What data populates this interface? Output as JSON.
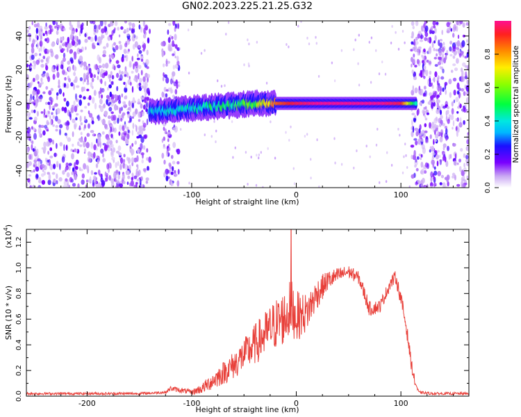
{
  "title": "GN02.2023.225.21.25.G32",
  "chart_data": [
    {
      "type": "heatmap",
      "title": "GN02.2023.225.21.25.G32",
      "xlabel": "Height of straight line (km)",
      "ylabel": "Frequency (Hz)",
      "xlim": [
        -258,
        165
      ],
      "ylim": [
        -50,
        49
      ],
      "x_ticks": [
        "-200",
        "-100",
        "0",
        "100"
      ],
      "y_ticks": [
        "-40",
        "-20",
        "0",
        "20",
        "40"
      ],
      "colorbar": {
        "label": "Normalized spectral amplitude",
        "range": [
          0,
          1
        ],
        "ticks": [
          "0.0",
          "0.2",
          "0.4",
          "0.6",
          "0.8"
        ]
      },
      "signal_band": [
        {
          "x": -140,
          "freq": -5,
          "amplitude": 0.35
        },
        {
          "x": -120,
          "freq": -4,
          "amplitude": 0.4
        },
        {
          "x": -100,
          "freq": -3,
          "amplitude": 0.4
        },
        {
          "x": -80,
          "freq": -2,
          "amplitude": 0.45
        },
        {
          "x": -60,
          "freq": -1,
          "amplitude": 0.5
        },
        {
          "x": -40,
          "freq": 0,
          "amplitude": 0.55
        },
        {
          "x": -20,
          "freq": 0,
          "amplitude": 0.85
        },
        {
          "x": 0,
          "freq": 0,
          "amplitude": 0.95
        },
        {
          "x": 20,
          "freq": 0,
          "amplitude": 1.0
        },
        {
          "x": 40,
          "freq": 0,
          "amplitude": 1.0
        },
        {
          "x": 60,
          "freq": 0,
          "amplitude": 1.0
        },
        {
          "x": 80,
          "freq": 0,
          "amplitude": 1.0
        },
        {
          "x": 100,
          "freq": 0,
          "amplitude": 0.95
        },
        {
          "x": 115,
          "freq": 0,
          "amplitude": 0.4
        }
      ],
      "noise_regions": [
        [
          -258,
          -140
        ],
        [
          -128,
          -112
        ],
        [
          110,
          165
        ]
      ]
    },
    {
      "type": "line",
      "xlabel": "Height of straight line (km)",
      "ylabel": "SNR (10 * v/v)",
      "y_exponent_label": "(x10",
      "y_exponent_power": "4",
      "y_scale_factor": 10000,
      "xlim": [
        -258,
        165
      ],
      "ylim": [
        0,
        1.3
      ],
      "x_ticks": [
        "-200",
        "-100",
        "0",
        "100"
      ],
      "y_ticks": [
        "0.0",
        "0.2",
        "0.4",
        "0.6",
        "0.8",
        "1.0",
        "1.2"
      ],
      "color": "#e8403a",
      "envelope": {
        "x": [
          -258,
          -200,
          -150,
          -125,
          -120,
          -100,
          -90,
          -80,
          -70,
          -60,
          -50,
          -40,
          -30,
          -20,
          -10,
          -5,
          0,
          10,
          20,
          30,
          40,
          50,
          60,
          65,
          70,
          80,
          90,
          95,
          100,
          105,
          110,
          113,
          117,
          130,
          150,
          165
        ],
        "y": [
          0.02,
          0.02,
          0.02,
          0.03,
          0.06,
          0.03,
          0.06,
          0.12,
          0.18,
          0.24,
          0.32,
          0.4,
          0.48,
          0.56,
          0.62,
          0.7,
          0.62,
          0.65,
          0.8,
          0.9,
          0.94,
          0.97,
          0.92,
          0.8,
          0.68,
          0.7,
          0.88,
          0.93,
          0.76,
          0.55,
          0.25,
          0.12,
          0.03,
          0.02,
          0.02,
          0.02
        ],
        "spread": [
          0.01,
          0.01,
          0.01,
          0.01,
          0.02,
          0.02,
          0.04,
          0.07,
          0.09,
          0.11,
          0.13,
          0.16,
          0.18,
          0.2,
          0.22,
          0.22,
          0.2,
          0.15,
          0.12,
          0.08,
          0.06,
          0.05,
          0.05,
          0.06,
          0.06,
          0.05,
          0.05,
          0.05,
          0.06,
          0.06,
          0.05,
          0.04,
          0.01,
          0.01,
          0.01,
          0.01
        ]
      },
      "peak": {
        "x": -5,
        "y": 1.3
      }
    }
  ]
}
